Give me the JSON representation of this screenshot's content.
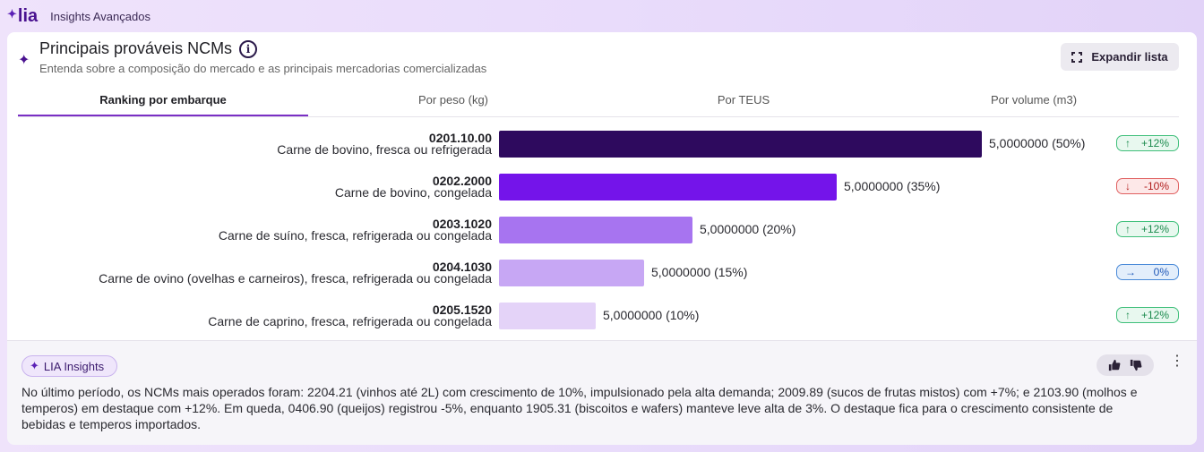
{
  "app": {
    "logo_text": "lia",
    "title": "Insights Avançados"
  },
  "card": {
    "title": "Principais prováveis NCMs",
    "subtitle": "Entenda sobre a composição do mercado e as principais mercadorias comercializadas",
    "expand_label": "Expandir lista"
  },
  "tabs": [
    {
      "label": "Ranking por embarque",
      "active": true
    },
    {
      "label": "Por peso (kg)",
      "active": false
    },
    {
      "label": "Por TEUS",
      "active": false
    },
    {
      "label": "Por volume (m3)",
      "active": false
    }
  ],
  "ranking": [
    {
      "code": "0201.10.00",
      "description": "Carne de bovino, fresca ou refrigerada",
      "value_text": "5,0000000 (50%)",
      "share": 50,
      "color": "#2e0a5e",
      "trend": "up",
      "trend_icon": "arrow-up-icon",
      "trend_text": "+12%"
    },
    {
      "code": "0202.2000",
      "description": "Carne de bovino, congelada",
      "value_text": "5,0000000 (35%)",
      "share": 35,
      "color": "#7414ea",
      "trend": "down",
      "trend_icon": "arrow-down-icon",
      "trend_text": "-10%"
    },
    {
      "code": "0203.1020",
      "description": "Carne de suíno, fresca, refrigerada ou congelada",
      "value_text": "5,0000000 (20%)",
      "share": 20,
      "color": "#a774f0",
      "trend": "up",
      "trend_icon": "arrow-up-icon",
      "trend_text": "+12%"
    },
    {
      "code": "0204.1030",
      "description": "Carne de ovino (ovelhas e carneiros), fresca, refrigerada ou congelada",
      "value_text": "5,0000000 (15%)",
      "share": 15,
      "color": "#c7a7f4",
      "trend": "flat",
      "trend_icon": "arrow-right-icon",
      "trend_text": "0%"
    },
    {
      "code": "0205.1520",
      "description": "Carne de caprino, fresca, refrigerada ou congelada",
      "value_text": "5,0000000 (10%)",
      "share": 10,
      "color": "#e4d3f8",
      "trend": "up",
      "trend_icon": "arrow-up-icon",
      "trend_text": "+12%"
    }
  ],
  "insights": {
    "chip_label": "LIA Insights",
    "text": "No último período, os NCMs mais operados foram: 2204.21 (vinhos até 2L) com crescimento de 10%, impulsionado pela alta demanda; 2009.89 (sucos de frutas mistos) com +7%; e 2103.90 (molhos e temperos) em destaque com +12%. Em queda, 0406.90 (queijos) registrou -5%, enquanto 1905.31 (biscoitos e wafers) manteve leve alta de 3%. O destaque fica para o crescimento consistente de bebidas e temperos importados."
  }
}
